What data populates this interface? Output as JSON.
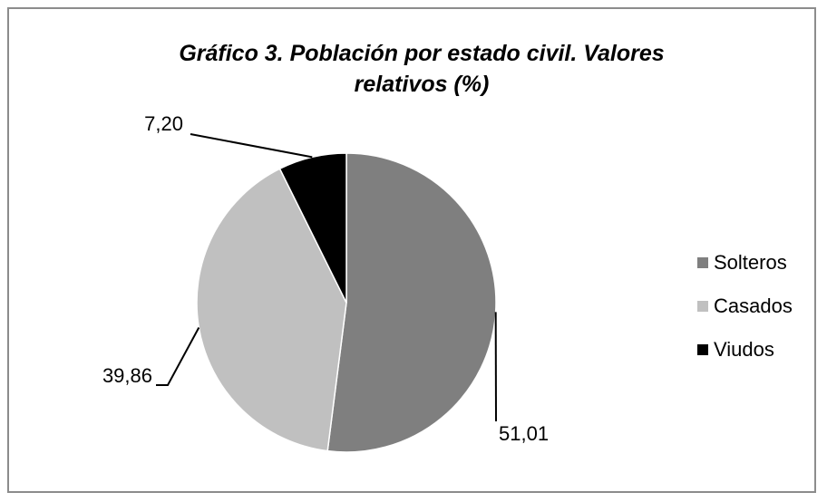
{
  "chart_data": {
    "type": "pie",
    "title": "Gráfico 3. Población por estado civil. Valores relativos (%)",
    "categories": [
      "Solteros",
      "Casados",
      "Viudos"
    ],
    "values": [
      51.01,
      39.86,
      7.2
    ],
    "value_labels": [
      "51,01",
      "39,86",
      "7,20"
    ],
    "colors": [
      "#7f7f7f",
      "#c0c0c0",
      "#000000"
    ],
    "legend": "right"
  }
}
